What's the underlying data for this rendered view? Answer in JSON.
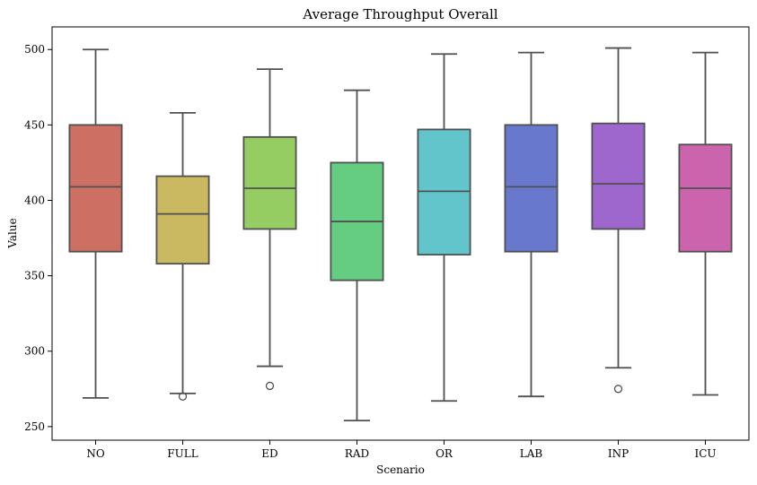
{
  "chart_data": {
    "type": "box",
    "title": "Average Throughput Overall",
    "xlabel": "Scenario",
    "ylabel": "Value",
    "ylim": [
      241,
      515
    ],
    "yticks": [
      250,
      300,
      350,
      400,
      450,
      500
    ],
    "grid": false,
    "categories": [
      "NO",
      "FULL",
      "ED",
      "RAD",
      "OR",
      "LAB",
      "INP",
      "ICU"
    ],
    "boxes": [
      {
        "name": "NO",
        "color": "#cd6f63",
        "whisker_low": 269,
        "q1": 366,
        "median": 409,
        "q3": 450,
        "whisker_high": 500,
        "outliers": []
      },
      {
        "name": "FULL",
        "color": "#cbb962",
        "whisker_low": 272,
        "q1": 358,
        "median": 391,
        "q3": 416,
        "whisker_high": 458,
        "outliers": [
          270
        ]
      },
      {
        "name": "ED",
        "color": "#95cd62",
        "whisker_low": 290,
        "q1": 381,
        "median": 408,
        "q3": 442,
        "whisker_high": 487,
        "outliers": [
          277
        ]
      },
      {
        "name": "RAD",
        "color": "#64cd81",
        "whisker_low": 254,
        "q1": 347,
        "median": 386,
        "q3": 425,
        "whisker_high": 473,
        "outliers": []
      },
      {
        "name": "OR",
        "color": "#62c5cb",
        "whisker_low": 267,
        "q1": 364,
        "median": 406,
        "q3": 447,
        "whisker_high": 497,
        "outliers": []
      },
      {
        "name": "LAB",
        "color": "#6879cd",
        "whisker_low": 270,
        "q1": 366,
        "median": 409,
        "q3": 450,
        "whisker_high": 498,
        "outliers": []
      },
      {
        "name": "INP",
        "color": "#9d67cd",
        "whisker_low": 289,
        "q1": 381,
        "median": 411,
        "q3": 451,
        "whisker_high": 501,
        "outliers": [
          275
        ]
      },
      {
        "name": "ICU",
        "color": "#cc64ad",
        "whisker_low": 271,
        "q1": 366,
        "median": 408,
        "q3": 437,
        "whisker_high": 498,
        "outliers": []
      }
    ],
    "line_color": "#505050"
  }
}
